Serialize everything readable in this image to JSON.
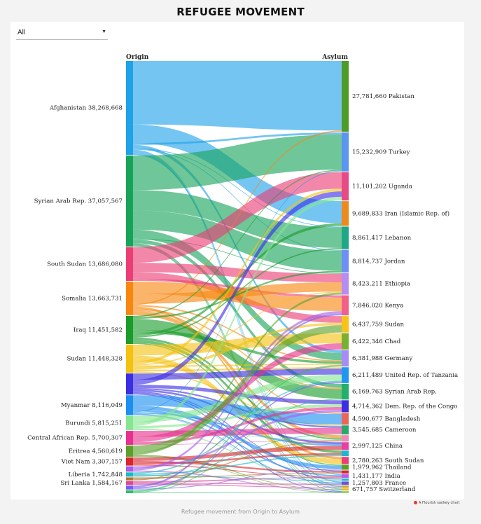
{
  "title": "REFUGEE MOVEMENT",
  "filter": {
    "selected": "All"
  },
  "credit": "A Flourish sankey chart",
  "caption": "Refugee movement from Origin to Asylum",
  "chart_data": {
    "type": "sankey",
    "column_headers": [
      "Origin",
      "Asylum"
    ],
    "origins": [
      {
        "label": "Afghanistan",
        "value": 38268668,
        "display": "38,268,668",
        "color": "#1fa2e8"
      },
      {
        "label": "Syrian Arab Rep.",
        "value": 37057567,
        "display": "37,057,567",
        "color": "#17a35a"
      },
      {
        "label": "South Sudan",
        "value": 13686080,
        "display": "13,686,080",
        "color": "#ec3d76"
      },
      {
        "label": "Somalia",
        "value": 13663731,
        "display": "13,663,731",
        "color": "#f7870f"
      },
      {
        "label": "Iraq",
        "value": 11451582,
        "display": "11,451,582",
        "color": "#1a9c2b"
      },
      {
        "label": "Sudan",
        "value": 11448328,
        "display": "11,448,328",
        "color": "#f5c211"
      },
      {
        "label": "",
        "value": 8600000,
        "display": "",
        "color": "#3b2ee3"
      },
      {
        "label": "Myanmar",
        "value": 8116049,
        "display": "8,116,049",
        "color": "#1c8ff0"
      },
      {
        "label": "Burundi",
        "value": 5815251,
        "display": "5,815,251",
        "color": "#86e68f"
      },
      {
        "label": "Central African Rep.",
        "value": 5700307,
        "display": "5,700,307",
        "color": "#e8308f"
      },
      {
        "label": "Eritrea",
        "value": 4560619,
        "display": "4,560,619",
        "color": "#5aa12a"
      },
      {
        "label": "Viet Nam",
        "value": 3307157,
        "display": "3,307,157",
        "color": "#d8262f"
      },
      {
        "label": "",
        "value": 2200000,
        "display": "",
        "color": "#a75de8"
      },
      {
        "label": "Liberia",
        "value": 1742848,
        "display": "1,742,848",
        "color": "#22b6c7"
      },
      {
        "label": "",
        "value": 1200000,
        "display": "",
        "color": "#b07a2a"
      },
      {
        "label": "Sri Lanka",
        "value": 1584167,
        "display": "1,584,167",
        "color": "#d94a9b"
      },
      {
        "label": "",
        "value": 1600000,
        "display": "",
        "color": "#7a5cf0"
      },
      {
        "label": "",
        "value": 1200000,
        "display": "",
        "color": "#2bc06b"
      }
    ],
    "asylums": [
      {
        "label": "Pakistan",
        "value": 27781660,
        "display": "27,781,660",
        "color": "#4d9c2a"
      },
      {
        "label": "Turkey",
        "value": 15232909,
        "display": "15,232,909",
        "color": "#5a95f0"
      },
      {
        "label": "Uganda",
        "value": 11101202,
        "display": "11,101,202",
        "color": "#e84a86"
      },
      {
        "label": "Iran (Islamic Rep. of)",
        "value": 9689833,
        "display": "9,689,833",
        "color": "#ec8a1e"
      },
      {
        "label": "Lebanon",
        "value": 8861417,
        "display": "8,861,417",
        "color": "#20a886"
      },
      {
        "label": "Jordan",
        "value": 8814737,
        "display": "8,814,737",
        "color": "#6f8ff5"
      },
      {
        "label": "Ethiopia",
        "value": 8423211,
        "display": "8,423,211",
        "color": "#b68cf0"
      },
      {
        "label": "Kenya",
        "value": 7846020,
        "display": "7,846,020",
        "color": "#f06088"
      },
      {
        "label": "Sudan",
        "value": 6437759,
        "display": "6,437,759",
        "color": "#f7c31a"
      },
      {
        "label": "Chad",
        "value": 6422346,
        "display": "6,422,346",
        "color": "#7ab02f"
      },
      {
        "label": "Germany",
        "value": 6381988,
        "display": "6,381,988",
        "color": "#a78cf5"
      },
      {
        "label": "United Rep. of Tanzania",
        "value": 6211489,
        "display": "6,211,489",
        "color": "#1f96f0"
      },
      {
        "label": "Syrian Arab Rep.",
        "value": 6169763,
        "display": "6,169,763",
        "color": "#22b06a"
      },
      {
        "label": "Dem. Rep. of the Congo",
        "value": 4714362,
        "display": "4,714,362",
        "color": "#3d2ee0"
      },
      {
        "label": "Bangladesh",
        "value": 4590677,
        "display": "4,590,677",
        "color": "#e8655a"
      },
      {
        "label": "Cameroon",
        "value": 3545685,
        "display": "3,545,685",
        "color": "#2aa86a"
      },
      {
        "label": "",
        "value": 2500000,
        "display": "",
        "color": "#f08ab8"
      },
      {
        "label": "China",
        "value": 2997125,
        "display": "2,997,125",
        "color": "#e83fa0"
      },
      {
        "label": "",
        "value": 2200000,
        "display": "",
        "color": "#1fb4d0"
      },
      {
        "label": "South Sudan",
        "value": 2780263,
        "display": "2,780,263",
        "color": "#ec3d76"
      },
      {
        "label": "Thailand",
        "value": 1979962,
        "display": "1,979,962",
        "color": "#5aa12a"
      },
      {
        "label": "",
        "value": 1200000,
        "display": "",
        "color": "#d8262f"
      },
      {
        "label": "India",
        "value": 1431177,
        "display": "1,431,177",
        "color": "#b65ce8"
      },
      {
        "label": "",
        "value": 900000,
        "display": "",
        "color": "#22b6c7"
      },
      {
        "label": "France",
        "value": 1257803,
        "display": "1,257,803",
        "color": "#6f4fe0"
      },
      {
        "label": "",
        "value": 900000,
        "display": "",
        "color": "#c8a52a"
      },
      {
        "label": "Switzerland",
        "value": 671757,
        "display": "671,757",
        "color": "#f0b01a"
      },
      {
        "label": "",
        "value": 900000,
        "display": "",
        "color": "#9ad36a"
      }
    ],
    "flows": [
      [
        0,
        0,
        26000000
      ],
      [
        0,
        3,
        7500000
      ],
      [
        0,
        1,
        800000
      ],
      [
        0,
        10,
        1400000
      ],
      [
        0,
        4,
        300000
      ],
      [
        0,
        5,
        300000
      ],
      [
        0,
        24,
        400000
      ],
      [
        0,
        25,
        600000
      ],
      [
        0,
        26,
        500000
      ],
      [
        0,
        22,
        600000
      ],
      [
        1,
        1,
        14000000
      ],
      [
        1,
        4,
        8300000
      ],
      [
        1,
        5,
        7800000
      ],
      [
        1,
        10,
        3700000
      ],
      [
        1,
        6,
        300000
      ],
      [
        1,
        12,
        1500000
      ],
      [
        1,
        25,
        600000
      ],
      [
        1,
        26,
        400000
      ],
      [
        1,
        27,
        400000
      ],
      [
        2,
        2,
        6200000
      ],
      [
        2,
        6,
        3700000
      ],
      [
        2,
        8,
        2600000
      ],
      [
        2,
        7,
        900000
      ],
      [
        3,
        7,
        5000000
      ],
      [
        3,
        6,
        4000000
      ],
      [
        3,
        0,
        500000
      ],
      [
        3,
        10,
        600000
      ],
      [
        3,
        19,
        900000
      ],
      [
        3,
        12,
        500000
      ],
      [
        3,
        14,
        400000
      ],
      [
        3,
        16,
        1700000
      ],
      [
        4,
        1,
        400000
      ],
      [
        4,
        5,
        600000
      ],
      [
        4,
        12,
        3700000
      ],
      [
        4,
        10,
        1200000
      ],
      [
        4,
        3,
        900000
      ],
      [
        4,
        4,
        500000
      ],
      [
        4,
        16,
        800000
      ],
      [
        4,
        18,
        1000000
      ],
      [
        4,
        20,
        400000
      ],
      [
        5,
        9,
        3500000
      ],
      [
        5,
        19,
        1900000
      ],
      [
        5,
        2,
        1000000
      ],
      [
        5,
        6,
        400000
      ],
      [
        5,
        10,
        500000
      ],
      [
        5,
        8,
        900000
      ],
      [
        5,
        11,
        600000
      ],
      [
        5,
        15,
        400000
      ],
      [
        6,
        11,
        2500000
      ],
      [
        6,
        2,
        2000000
      ],
      [
        6,
        13,
        1300000
      ],
      [
        6,
        15,
        600000
      ],
      [
        6,
        17,
        700000
      ],
      [
        6,
        21,
        400000
      ],
      [
        6,
        23,
        500000
      ],
      [
        6,
        27,
        400000
      ],
      [
        7,
        14,
        4100000
      ],
      [
        7,
        20,
        1500000
      ],
      [
        7,
        22,
        800000
      ],
      [
        7,
        1,
        300000
      ],
      [
        7,
        17,
        600000
      ],
      [
        7,
        24,
        400000
      ],
      [
        7,
        25,
        200000
      ],
      [
        8,
        11,
        2600000
      ],
      [
        8,
        2,
        1400000
      ],
      [
        8,
        13,
        900000
      ],
      [
        8,
        23,
        500000
      ],
      [
        8,
        16,
        300000
      ],
      [
        9,
        15,
        2400000
      ],
      [
        9,
        9,
        2200000
      ],
      [
        9,
        13,
        900000
      ],
      [
        9,
        16,
        200000
      ],
      [
        10,
        8,
        2800000
      ],
      [
        10,
        6,
        900000
      ],
      [
        10,
        26,
        500000
      ],
      [
        10,
        27,
        300000
      ],
      [
        11,
        17,
        1400000
      ],
      [
        11,
        21,
        800000
      ],
      [
        11,
        18,
        700000
      ],
      [
        11,
        22,
        400000
      ],
      [
        12,
        13,
        800000
      ],
      [
        12,
        7,
        900000
      ],
      [
        12,
        26,
        500000
      ],
      [
        13,
        11,
        500000
      ],
      [
        13,
        18,
        500000
      ],
      [
        13,
        23,
        400000
      ],
      [
        13,
        15,
        300000
      ],
      [
        14,
        21,
        400000
      ],
      [
        14,
        16,
        500000
      ],
      [
        14,
        10,
        300000
      ],
      [
        15,
        22,
        600000
      ],
      [
        15,
        24,
        400000
      ],
      [
        15,
        25,
        500000
      ],
      [
        16,
        7,
        700000
      ],
      [
        16,
        11,
        500000
      ],
      [
        16,
        20,
        300000
      ],
      [
        17,
        10,
        600000
      ],
      [
        17,
        12,
        300000
      ],
      [
        17,
        27,
        300000
      ]
    ]
  }
}
